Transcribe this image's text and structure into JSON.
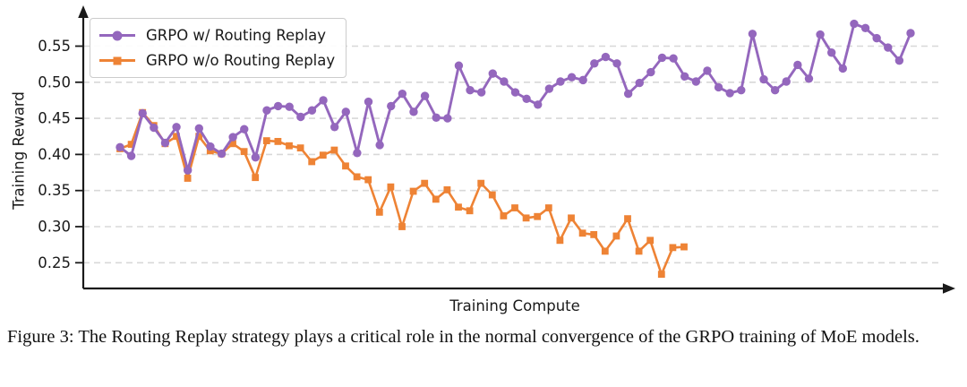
{
  "figure": {
    "caption": "Figure 3: The Routing Replay strategy plays a critical role in the normal convergence of the GRPO training of MoE models."
  },
  "chart_data": {
    "type": "line",
    "title": "",
    "xlabel": "Training Compute",
    "ylabel": "Training Reward",
    "yticks": [
      0.55,
      0.5,
      0.45,
      0.4,
      0.35,
      0.3,
      0.25
    ],
    "ylim": [
      0.215,
      0.595
    ],
    "x_axis": "unlabeled continuous training-compute axis with arrowhead",
    "grid": "horizontal dashed gridlines at each y tick",
    "legend_position": "upper-left",
    "colors": {
      "with_replay": "#9467bd",
      "without_replay": "#ee8335",
      "grid": "#d8d8d8",
      "axis": "#1a1a1a"
    },
    "series": [
      {
        "name": "GRPO w/ Routing Replay",
        "color": "#9467bd",
        "marker": "circle",
        "values": [
          0.41,
          0.398,
          0.457,
          0.437,
          0.416,
          0.438,
          0.378,
          0.436,
          0.411,
          0.401,
          0.424,
          0.435,
          0.396,
          0.461,
          0.467,
          0.466,
          0.452,
          0.461,
          0.475,
          0.438,
          0.459,
          0.402,
          0.473,
          0.413,
          0.467,
          0.484,
          0.459,
          0.481,
          0.451,
          0.45,
          0.523,
          0.489,
          0.486,
          0.512,
          0.501,
          0.486,
          0.477,
          0.469,
          0.491,
          0.501,
          0.507,
          0.503,
          0.526,
          0.535,
          0.526,
          0.484,
          0.499,
          0.514,
          0.534,
          0.533,
          0.508,
          0.501,
          0.516,
          0.493,
          0.485,
          0.489,
          0.567,
          0.504,
          0.489,
          0.501,
          0.524,
          0.505,
          0.566,
          0.541,
          0.519,
          0.581,
          0.575,
          0.561,
          0.548,
          0.53,
          0.568
        ]
      },
      {
        "name": "GRPO w/o Routing Replay",
        "color": "#ee8335",
        "marker": "square",
        "values": [
          0.408,
          0.414,
          0.458,
          0.44,
          0.415,
          0.425,
          0.367,
          0.425,
          0.405,
          0.401,
          0.415,
          0.404,
          0.368,
          0.419,
          0.418,
          0.412,
          0.409,
          0.39,
          0.399,
          0.406,
          0.384,
          0.369,
          0.365,
          0.32,
          0.355,
          0.3,
          0.349,
          0.36,
          0.338,
          0.351,
          0.327,
          0.322,
          0.36,
          0.344,
          0.315,
          0.326,
          0.312,
          0.314,
          0.326,
          0.281,
          0.312,
          0.291,
          0.289,
          0.266,
          0.287,
          0.311,
          0.266,
          0.281,
          0.234,
          0.271,
          0.272
        ]
      }
    ]
  }
}
